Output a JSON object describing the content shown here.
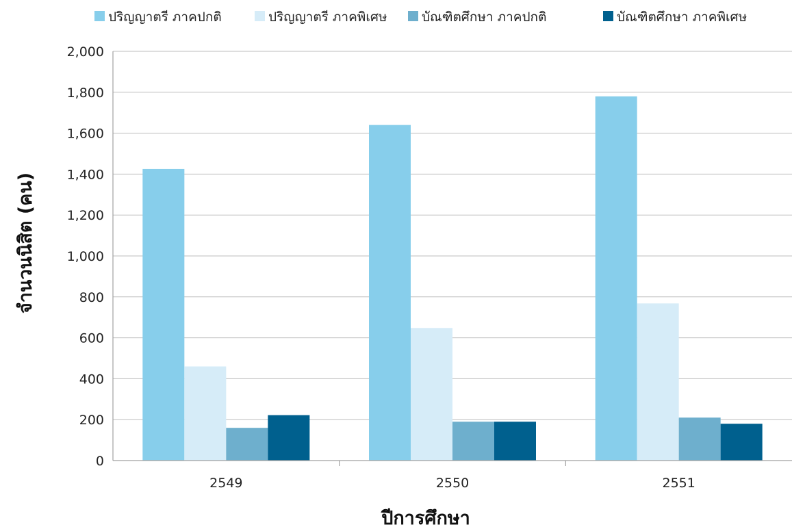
{
  "chart_data": {
    "type": "bar",
    "xlabel": "ปีการศึกษา",
    "ylabel": "จำนวนนิสิต (คน)",
    "categories": [
      "2549",
      "2550",
      "2551"
    ],
    "ylim": [
      0,
      2000
    ],
    "yticks": [
      0,
      200,
      400,
      600,
      800,
      1000,
      1200,
      1400,
      1600,
      1800,
      2000
    ],
    "ytick_labels": [
      "0",
      "200",
      "400",
      "600",
      "800",
      "1,000",
      "1,200",
      "1,400",
      "1,600",
      "1,800",
      "2,000"
    ],
    "grid": true,
    "legend_position": "top",
    "series": [
      {
        "name": "ปริญญาตรี ภาคปกติ",
        "color": "#87CEEB",
        "values": [
          1425,
          1640,
          1780
        ]
      },
      {
        "name": "ปริญญาตรี ภาคพิเศษ",
        "color": "#D6ECF8",
        "values": [
          460,
          648,
          768
        ]
      },
      {
        "name": "บัณฑิตศึกษา ภาคปกติ",
        "color": "#6EAFCD",
        "values": [
          160,
          190,
          210
        ]
      },
      {
        "name": "บัณฑิตศึกษา ภาคพิเศษ",
        "color": "#00608E",
        "values": [
          222,
          190,
          180
        ]
      }
    ]
  }
}
